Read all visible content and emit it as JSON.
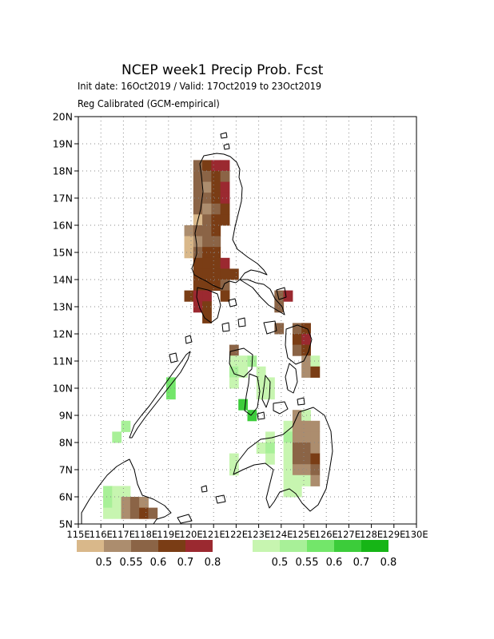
{
  "title": "NCEP week1 Precip Prob. Fcst",
  "subtitle_dates": "Init date: 16Oct2019 / Valid: 17Oct2019 to 23Oct2019",
  "subtitle_method": "Reg Calibrated (GCM-empirical)",
  "map": {
    "lon_range": [
      115,
      130
    ],
    "lat_range": [
      5,
      20
    ],
    "grid": "dotted",
    "lat_labels": [
      "5N",
      "6N",
      "7N",
      "8N",
      "9N",
      "10N",
      "11N",
      "12N",
      "13N",
      "14N",
      "15N",
      "16N",
      "17N",
      "18N",
      "19N",
      "20N"
    ],
    "lon_labels": [
      "115E",
      "116E",
      "117E",
      "118E",
      "119E",
      "120E",
      "121E",
      "122E",
      "123E",
      "124E",
      "125E",
      "126E",
      "127E",
      "128E",
      "129E",
      "130E"
    ]
  },
  "legend_dry": {
    "labels": [
      "0.5",
      "0.55",
      "0.6",
      "0.7",
      "0.8"
    ],
    "colors": [
      "#d9b88a",
      "#ac8d6e",
      "#8b6446",
      "#7a3d15",
      "#9b2930"
    ]
  },
  "legend_wet": {
    "labels": [
      "0.5",
      "0.55",
      "0.6",
      "0.7",
      "0.8"
    ],
    "colors": [
      "#c7f5b0",
      "#a8f098",
      "#73e66a",
      "#3ccc3a",
      "#16b516"
    ]
  }
}
